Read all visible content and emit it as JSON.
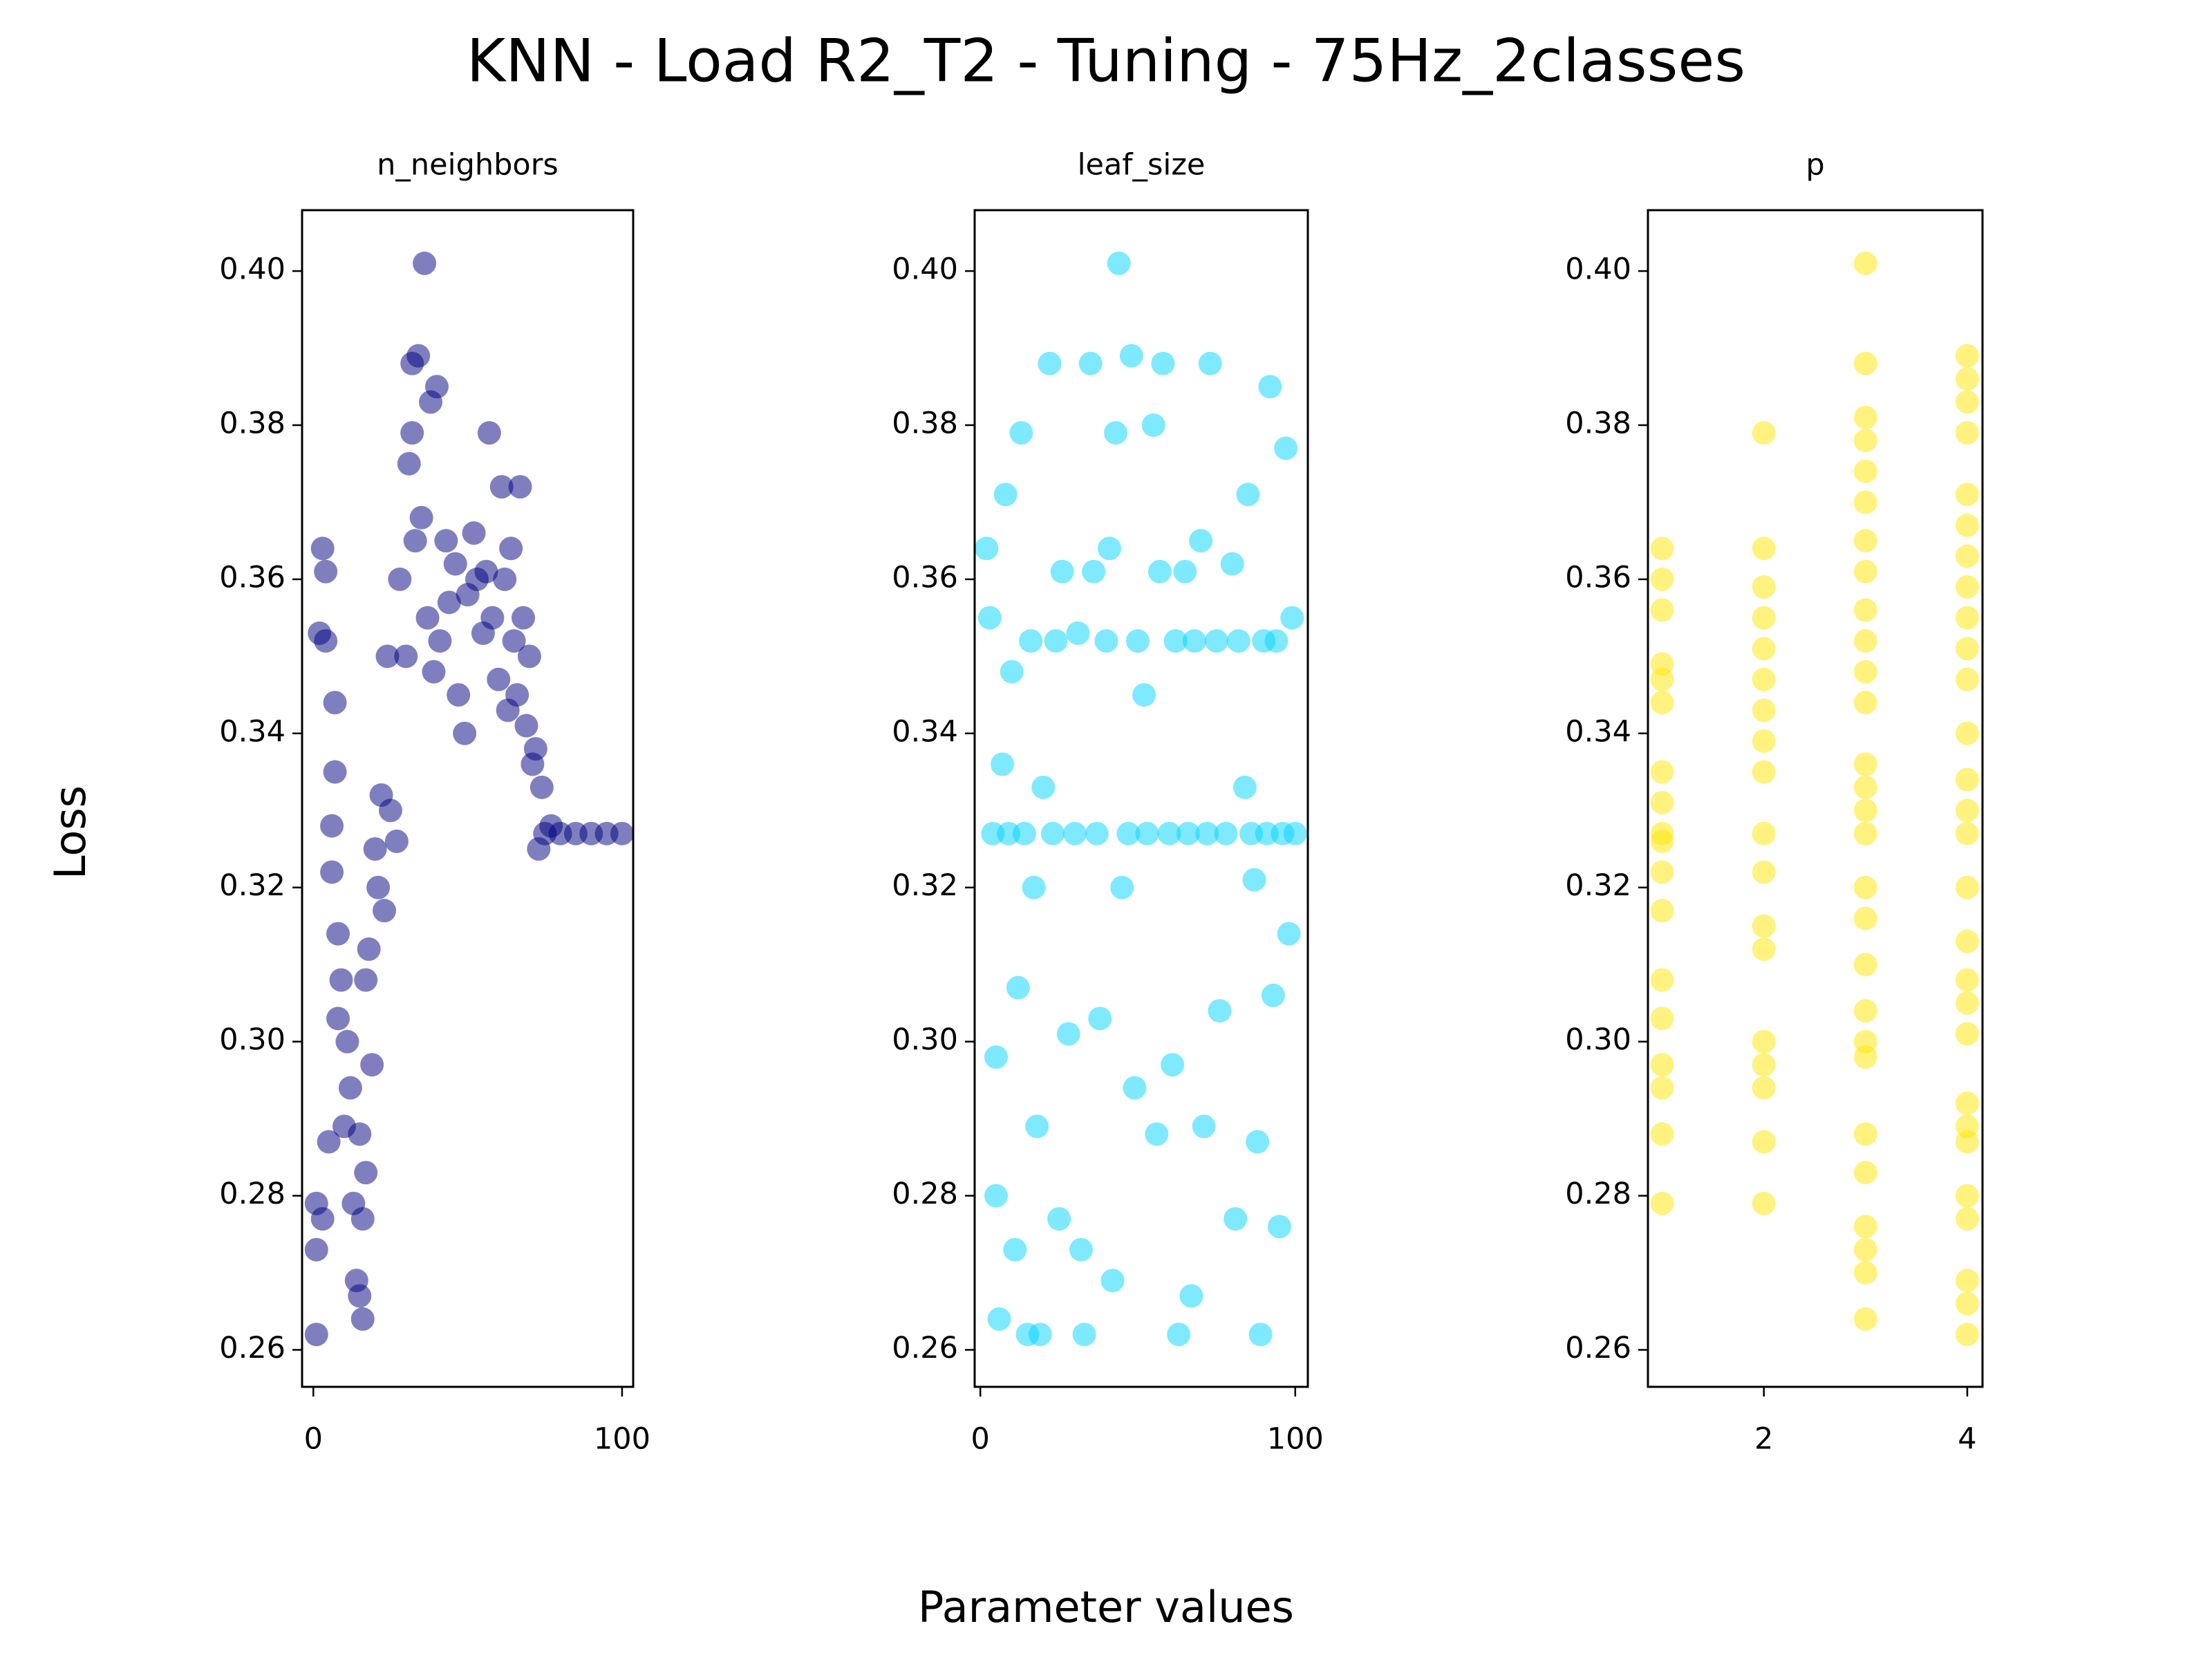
{
  "figure": {
    "title": "KNN - Load R2_T2 - Tuning - 75Hz_2classes",
    "xlabel": "Parameter values",
    "ylabel": "Loss"
  },
  "chart_data": [
    {
      "type": "scatter",
      "title": "n_neighbors",
      "color": "#000080",
      "x": [
        1,
        1,
        1,
        3,
        2,
        3,
        4,
        4,
        5,
        6,
        6,
        7,
        7,
        8,
        8,
        9,
        10,
        11,
        12,
        13,
        14,
        15,
        15,
        16,
        16,
        17,
        17,
        18,
        19,
        20,
        21,
        22,
        23,
        24,
        25,
        27,
        28,
        30,
        31,
        32,
        32,
        33,
        34,
        35,
        36,
        37,
        38,
        39,
        40,
        41,
        43,
        44,
        46,
        47,
        49,
        50,
        52,
        53,
        55,
        56,
        57,
        58,
        60,
        61,
        62,
        63,
        64,
        65,
        66,
        67,
        68,
        69,
        70,
        71,
        72,
        73,
        74,
        75,
        77,
        80,
        85,
        90,
        95,
        100
      ],
      "values": [
        0.262,
        0.273,
        0.279,
        0.277,
        0.353,
        0.364,
        0.361,
        0.352,
        0.287,
        0.322,
        0.328,
        0.335,
        0.344,
        0.303,
        0.314,
        0.308,
        0.289,
        0.3,
        0.294,
        0.279,
        0.269,
        0.267,
        0.288,
        0.264,
        0.277,
        0.283,
        0.308,
        0.312,
        0.297,
        0.325,
        0.32,
        0.332,
        0.317,
        0.35,
        0.33,
        0.326,
        0.36,
        0.35,
        0.375,
        0.379,
        0.388,
        0.365,
        0.389,
        0.368,
        0.401,
        0.355,
        0.383,
        0.348,
        0.385,
        0.352,
        0.365,
        0.357,
        0.362,
        0.345,
        0.34,
        0.358,
        0.366,
        0.36,
        0.353,
        0.361,
        0.379,
        0.355,
        0.347,
        0.372,
        0.36,
        0.343,
        0.364,
        0.352,
        0.345,
        0.372,
        0.355,
        0.341,
        0.35,
        0.336,
        0.338,
        0.325,
        0.333,
        0.327,
        0.328,
        0.327,
        0.327,
        0.327,
        0.327,
        0.327
      ],
      "xlim": [
        -3.65,
        103.6
      ],
      "xticks": [
        0,
        100
      ],
      "ylim": [
        0.2552,
        0.4079
      ],
      "yticks": [
        0.26,
        0.28,
        {
          "value": 0.3,
          "label": "0.30"
        },
        0.32,
        0.34,
        0.36,
        0.38,
        {
          "value": 0.4,
          "label": "0.40"
        }
      ]
    },
    {
      "type": "scatter",
      "title": "leaf_size",
      "color": "#00d4ff",
      "x": [
        2,
        3,
        4,
        5,
        5,
        6,
        7,
        8,
        9,
        10,
        11,
        12,
        13,
        14,
        15,
        16,
        17,
        18,
        19,
        20,
        22,
        23,
        24,
        25,
        26,
        28,
        30,
        31,
        32,
        33,
        35,
        36,
        37,
        38,
        40,
        41,
        42,
        43,
        44,
        45,
        47,
        48,
        49,
        50,
        52,
        53,
        55,
        56,
        57,
        58,
        60,
        61,
        62,
        63,
        65,
        66,
        67,
        68,
        70,
        71,
        72,
        73,
        75,
        76,
        78,
        80,
        81,
        82,
        84,
        85,
        86,
        87,
        88,
        89,
        90,
        91,
        92,
        93,
        94,
        95,
        96,
        97,
        98,
        99,
        100
      ],
      "values": [
        0.364,
        0.355,
        0.327,
        0.28,
        0.298,
        0.264,
        0.336,
        0.371,
        0.327,
        0.348,
        0.273,
        0.307,
        0.379,
        0.327,
        0.262,
        0.352,
        0.32,
        0.289,
        0.262,
        0.333,
        0.388,
        0.327,
        0.352,
        0.277,
        0.361,
        0.301,
        0.327,
        0.353,
        0.273,
        0.262,
        0.388,
        0.361,
        0.327,
        0.303,
        0.352,
        0.364,
        0.269,
        0.379,
        0.401,
        0.32,
        0.327,
        0.389,
        0.294,
        0.352,
        0.345,
        0.327,
        0.38,
        0.288,
        0.361,
        0.388,
        0.327,
        0.297,
        0.352,
        0.262,
        0.361,
        0.327,
        0.267,
        0.352,
        0.365,
        0.289,
        0.327,
        0.388,
        0.352,
        0.304,
        0.327,
        0.362,
        0.277,
        0.352,
        0.333,
        0.371,
        0.327,
        0.321,
        0.287,
        0.262,
        0.352,
        0.327,
        0.385,
        0.306,
        0.352,
        0.276,
        0.327,
        0.377,
        0.314,
        0.355,
        0.327
      ],
      "xlim": [
        -1.8,
        104
      ],
      "xticks": [
        0,
        100
      ],
      "ylim": [
        0.2552,
        0.4079
      ],
      "yticks": [
        0.26,
        0.28,
        {
          "value": 0.3,
          "label": "0.30"
        },
        0.32,
        0.34,
        0.36,
        0.38,
        {
          "value": 0.4,
          "label": "0.40"
        }
      ]
    },
    {
      "type": "scatter",
      "title": "p",
      "color": "#ffe600",
      "x": [
        1,
        1,
        1,
        1,
        1,
        1,
        1,
        1,
        1,
        1,
        1,
        1,
        1,
        1,
        1,
        1,
        1,
        1,
        2,
        2,
        2,
        2,
        2,
        2,
        2,
        2,
        2,
        2,
        2,
        2,
        2,
        2,
        2,
        2,
        2,
        2,
        3,
        3,
        3,
        3,
        3,
        3,
        3,
        3,
        3,
        3,
        3,
        3,
        3,
        3,
        3,
        3,
        3,
        3,
        3,
        3,
        3,
        3,
        3,
        3,
        3,
        3,
        3,
        3,
        4,
        4,
        4,
        4,
        4,
        4,
        4,
        4,
        4,
        4,
        4,
        4,
        4,
        4,
        4,
        4,
        4,
        4,
        4,
        4,
        4,
        4,
        4,
        4,
        4,
        4,
        4,
        4
      ],
      "values": [
        0.279,
        0.288,
        0.294,
        0.297,
        0.303,
        0.308,
        0.317,
        0.322,
        0.326,
        0.327,
        0.331,
        0.335,
        0.344,
        0.347,
        0.349,
        0.356,
        0.36,
        0.364,
        0.279,
        0.287,
        0.294,
        0.297,
        0.3,
        0.312,
        0.315,
        0.322,
        0.327,
        0.335,
        0.339,
        0.343,
        0.347,
        0.351,
        0.355,
        0.359,
        0.364,
        0.379,
        0.264,
        0.27,
        0.273,
        0.276,
        0.283,
        0.288,
        0.298,
        0.3,
        0.304,
        0.31,
        0.316,
        0.32,
        0.327,
        0.33,
        0.333,
        0.336,
        0.344,
        0.348,
        0.352,
        0.356,
        0.361,
        0.365,
        0.37,
        0.374,
        0.378,
        0.381,
        0.388,
        0.401,
        0.262,
        0.266,
        0.269,
        0.277,
        0.28,
        0.287,
        0.289,
        0.292,
        0.301,
        0.305,
        0.308,
        0.313,
        0.32,
        0.327,
        0.33,
        0.334,
        0.34,
        0.347,
        0.351,
        0.355,
        0.359,
        0.363,
        0.367,
        0.371,
        0.379,
        0.383,
        0.386,
        0.389
      ],
      "xlim": [
        0.86,
        4.15
      ],
      "xticks": [
        2,
        4
      ],
      "ylim": [
        0.2552,
        0.4079
      ],
      "yticks": [
        0.26,
        0.28,
        {
          "value": 0.3,
          "label": "0.30"
        },
        0.32,
        0.34,
        0.36,
        0.38,
        {
          "value": 0.4,
          "label": "0.40"
        }
      ]
    }
  ]
}
